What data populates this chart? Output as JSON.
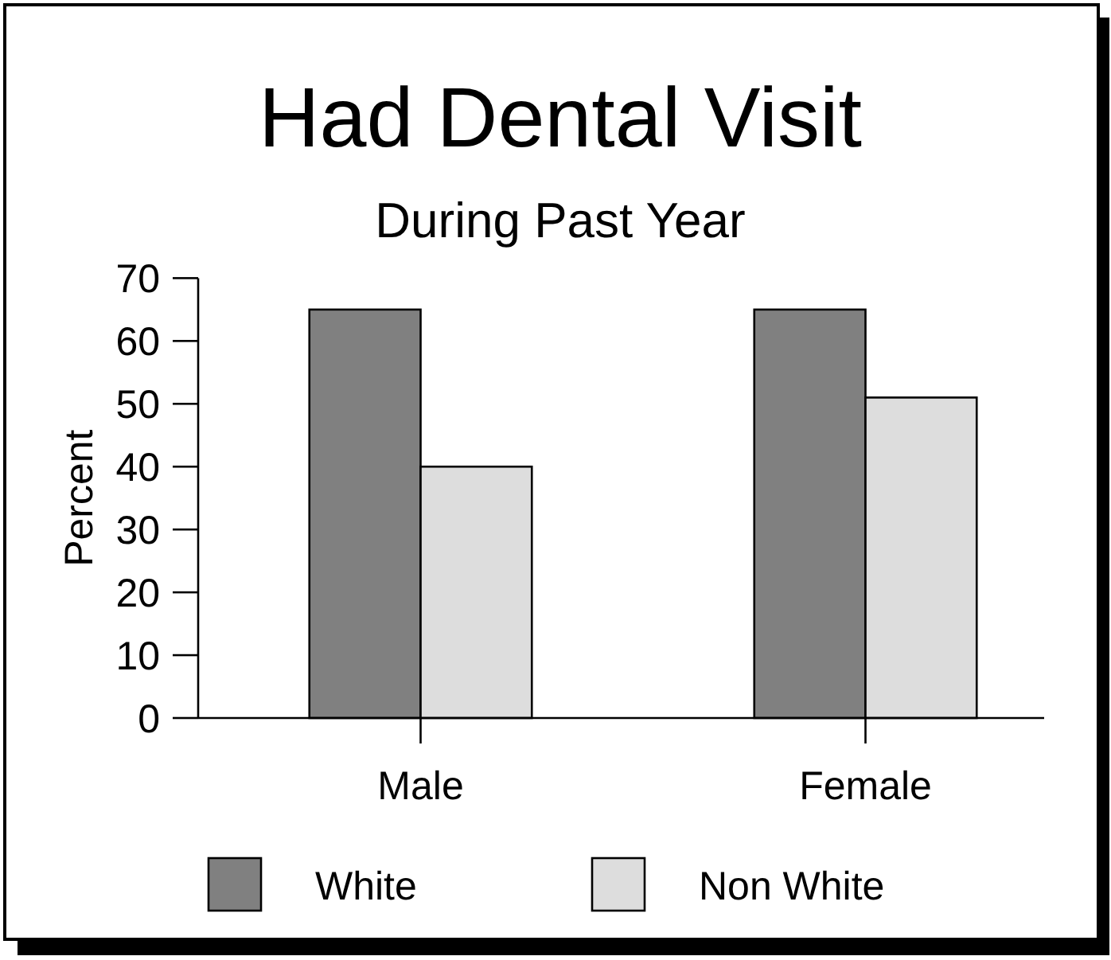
{
  "chart_data": {
    "type": "bar",
    "title": "Had Dental Visit",
    "subtitle": "During Past Year",
    "ylabel": "Percent",
    "categories": [
      "Male",
      "Female"
    ],
    "series": [
      {
        "name": "White",
        "color": "#808080",
        "values": [
          65,
          65
        ]
      },
      {
        "name": "Non White",
        "color": "#dddddd",
        "values": [
          40,
          51
        ]
      }
    ],
    "ylim": [
      0,
      70
    ],
    "yticks": [
      0,
      10,
      20,
      30,
      40,
      50,
      60,
      70
    ],
    "legend": "bottom"
  }
}
